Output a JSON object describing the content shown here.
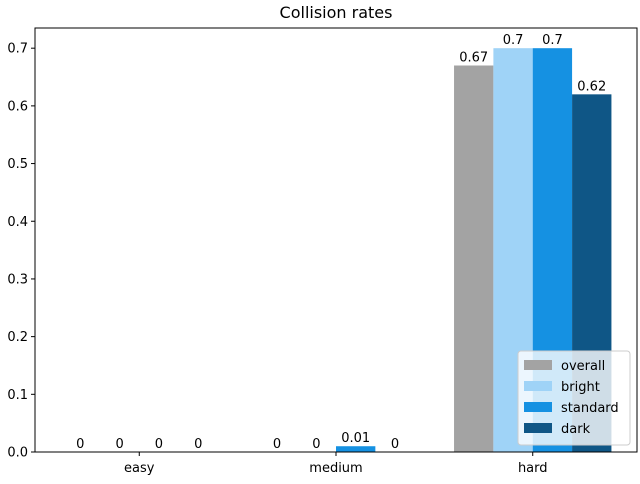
{
  "chart_data": {
    "type": "bar",
    "title": "Collision rates",
    "xlabel": "",
    "ylabel": "",
    "categories": [
      "easy",
      "medium",
      "hard"
    ],
    "series": [
      {
        "name": "overall",
        "color": "#a3a3a3",
        "values": [
          0,
          0,
          0.67
        ],
        "labels": [
          "0",
          "0",
          "0.67"
        ]
      },
      {
        "name": "bright",
        "color": "#9fd3f7",
        "values": [
          0,
          0,
          0.7
        ],
        "labels": [
          "0",
          "0",
          "0.7"
        ]
      },
      {
        "name": "standard",
        "color": "#1591e2",
        "values": [
          0,
          0.01,
          0.7
        ],
        "labels": [
          "0",
          "0.01",
          "0.7"
        ]
      },
      {
        "name": "dark",
        "color": "#0f5686",
        "values": [
          0,
          0,
          0.62
        ],
        "labels": [
          "0",
          "0",
          "0.62"
        ]
      }
    ],
    "ylim": [
      0,
      0.735
    ],
    "yticks": [
      0.0,
      0.1,
      0.2,
      0.3,
      0.4,
      0.5,
      0.6,
      0.7
    ],
    "ytick_labels": [
      "0.0",
      "0.1",
      "0.2",
      "0.3",
      "0.4",
      "0.5",
      "0.6",
      "0.7"
    ],
    "grid": false,
    "legend_position": "bottom-right"
  }
}
